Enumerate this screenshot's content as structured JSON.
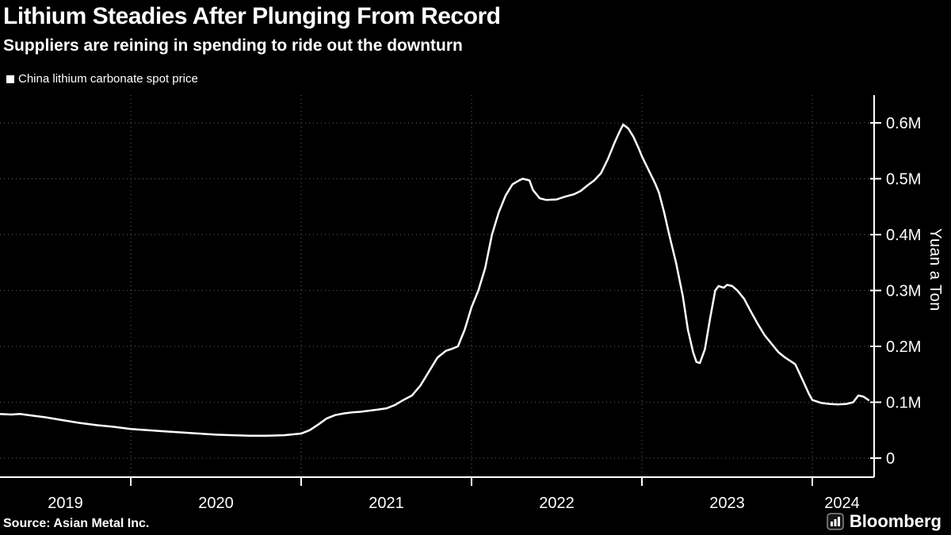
{
  "header": {
    "title": "Lithium Steadies After Plunging From Record",
    "subtitle": "Suppliers are reining in spending to ride out the downturn"
  },
  "legend": {
    "label": "China lithium carbonate spot price",
    "swatch_color": "#ffffff"
  },
  "footer": {
    "source": "Source: Asian Metal Inc.",
    "brand": "Bloomberg"
  },
  "colors": {
    "background": "#000000",
    "text": "#ffffff",
    "grid": "#555555",
    "axis": "#ffffff",
    "line": "#ffffff"
  },
  "chart_data": {
    "type": "line",
    "title": "Lithium Steadies After Plunging From Record",
    "subtitle": "Suppliers are reining in spending to ride out the downturn",
    "ylabel": "Yuan a Ton",
    "xlabel": "",
    "unit": "million yuan per ton",
    "grid": "dotted",
    "legend_position": "top-left",
    "x_range": [
      2019.23,
      2024.35
    ],
    "y_range": [
      0,
      0.65
    ],
    "x_tick_labels": [
      "2019",
      "2020",
      "2021",
      "2022",
      "2023",
      "2024"
    ],
    "year_gridlines": [
      2020,
      2021,
      2022,
      2023,
      2024
    ],
    "y_ticks": [
      {
        "value": 0,
        "label": "0"
      },
      {
        "value": 0.1,
        "label": "0.1M"
      },
      {
        "value": 0.2,
        "label": "0.2M"
      },
      {
        "value": 0.3,
        "label": "0.3M"
      },
      {
        "value": 0.4,
        "label": "0.4M"
      },
      {
        "value": 0.5,
        "label": "0.5M"
      },
      {
        "value": 0.6,
        "label": "0.6M"
      }
    ],
    "series": [
      {
        "name": "China lithium carbonate spot price",
        "color": "#ffffff",
        "points": [
          [
            2019.23,
            0.079
          ],
          [
            2019.3,
            0.078
          ],
          [
            2019.35,
            0.079
          ],
          [
            2019.4,
            0.077
          ],
          [
            2019.5,
            0.073
          ],
          [
            2019.6,
            0.068
          ],
          [
            2019.7,
            0.063
          ],
          [
            2019.8,
            0.059
          ],
          [
            2019.9,
            0.056
          ],
          [
            2020.0,
            0.052
          ],
          [
            2020.1,
            0.05
          ],
          [
            2020.2,
            0.048
          ],
          [
            2020.3,
            0.046
          ],
          [
            2020.4,
            0.044
          ],
          [
            2020.5,
            0.042
          ],
          [
            2020.6,
            0.041
          ],
          [
            2020.7,
            0.04
          ],
          [
            2020.8,
            0.04
          ],
          [
            2020.9,
            0.041
          ],
          [
            2021.0,
            0.044
          ],
          [
            2021.05,
            0.05
          ],
          [
            2021.1,
            0.06
          ],
          [
            2021.15,
            0.071
          ],
          [
            2021.2,
            0.077
          ],
          [
            2021.25,
            0.08
          ],
          [
            2021.3,
            0.082
          ],
          [
            2021.35,
            0.083
          ],
          [
            2021.4,
            0.085
          ],
          [
            2021.45,
            0.087
          ],
          [
            2021.5,
            0.089
          ],
          [
            2021.55,
            0.095
          ],
          [
            2021.6,
            0.104
          ],
          [
            2021.65,
            0.112
          ],
          [
            2021.7,
            0.13
          ],
          [
            2021.75,
            0.155
          ],
          [
            2021.8,
            0.18
          ],
          [
            2021.85,
            0.192
          ],
          [
            2021.88,
            0.195
          ],
          [
            2021.92,
            0.2
          ],
          [
            2021.96,
            0.23
          ],
          [
            2022.0,
            0.27
          ],
          [
            2022.04,
            0.3
          ],
          [
            2022.08,
            0.34
          ],
          [
            2022.12,
            0.4
          ],
          [
            2022.16,
            0.44
          ],
          [
            2022.2,
            0.47
          ],
          [
            2022.24,
            0.49
          ],
          [
            2022.28,
            0.497
          ],
          [
            2022.3,
            0.5
          ],
          [
            2022.34,
            0.497
          ],
          [
            2022.36,
            0.48
          ],
          [
            2022.4,
            0.465
          ],
          [
            2022.44,
            0.462
          ],
          [
            2022.5,
            0.463
          ],
          [
            2022.55,
            0.468
          ],
          [
            2022.6,
            0.472
          ],
          [
            2022.64,
            0.478
          ],
          [
            2022.68,
            0.488
          ],
          [
            2022.72,
            0.497
          ],
          [
            2022.76,
            0.51
          ],
          [
            2022.8,
            0.535
          ],
          [
            2022.84,
            0.565
          ],
          [
            2022.87,
            0.585
          ],
          [
            2022.89,
            0.597
          ],
          [
            2022.92,
            0.59
          ],
          [
            2022.95,
            0.575
          ],
          [
            2022.98,
            0.555
          ],
          [
            2023.0,
            0.54
          ],
          [
            2023.04,
            0.515
          ],
          [
            2023.08,
            0.49
          ],
          [
            2023.1,
            0.475
          ],
          [
            2023.13,
            0.44
          ],
          [
            2023.16,
            0.4
          ],
          [
            2023.2,
            0.35
          ],
          [
            2023.24,
            0.29
          ],
          [
            2023.27,
            0.23
          ],
          [
            2023.3,
            0.19
          ],
          [
            2023.32,
            0.172
          ],
          [
            2023.34,
            0.17
          ],
          [
            2023.37,
            0.195
          ],
          [
            2023.4,
            0.25
          ],
          [
            2023.43,
            0.3
          ],
          [
            2023.45,
            0.308
          ],
          [
            2023.48,
            0.305
          ],
          [
            2023.5,
            0.31
          ],
          [
            2023.53,
            0.308
          ],
          [
            2023.56,
            0.3
          ],
          [
            2023.6,
            0.285
          ],
          [
            2023.64,
            0.262
          ],
          [
            2023.68,
            0.24
          ],
          [
            2023.72,
            0.22
          ],
          [
            2023.76,
            0.205
          ],
          [
            2023.8,
            0.19
          ],
          [
            2023.84,
            0.18
          ],
          [
            2023.88,
            0.172
          ],
          [
            2023.9,
            0.168
          ],
          [
            2023.92,
            0.155
          ],
          [
            2023.95,
            0.135
          ],
          [
            2023.98,
            0.115
          ],
          [
            2024.0,
            0.104
          ],
          [
            2024.05,
            0.099
          ],
          [
            2024.1,
            0.097
          ],
          [
            2024.15,
            0.096
          ],
          [
            2024.2,
            0.097
          ],
          [
            2024.24,
            0.1
          ],
          [
            2024.27,
            0.112
          ],
          [
            2024.3,
            0.11
          ],
          [
            2024.33,
            0.104
          ]
        ]
      }
    ]
  }
}
